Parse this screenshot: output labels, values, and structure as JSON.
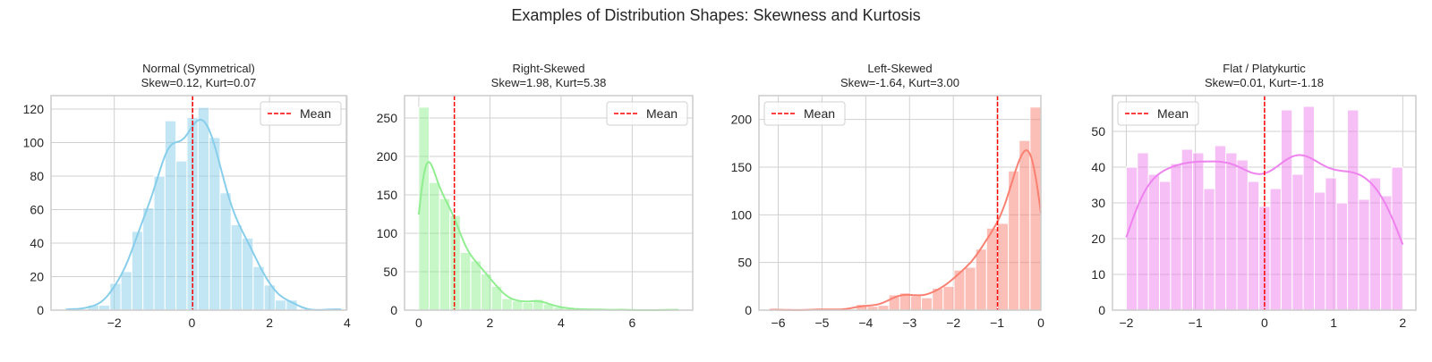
{
  "figure_title": "Examples of Distribution Shapes: Skewness and Kurtosis",
  "chart_data": [
    {
      "type": "bar",
      "title_line1": "Normal (Symmetrical)",
      "title_line2": "Skew=0.12, Kurt=0.07",
      "color": "#87ceeb",
      "bin_start": -3.25,
      "bin_width": 0.284,
      "values": [
        1,
        0,
        3,
        3,
        16,
        23,
        47,
        61,
        80,
        113,
        89,
        115,
        121,
        103,
        70,
        51,
        43,
        26,
        15,
        6,
        6,
        0,
        0,
        0,
        1
      ],
      "mean": 0.02,
      "xlim": [
        -3.63,
        3.98
      ],
      "ylim": [
        0,
        128
      ],
      "xticks": [
        -2,
        0,
        2,
        4
      ],
      "xtick_labels": [
        "−2",
        "0",
        "2",
        "4"
      ],
      "yticks": [
        0,
        20,
        40,
        60,
        80,
        100,
        120
      ],
      "ytick_labels": [
        "0",
        "20",
        "40",
        "60",
        "80",
        "100",
        "120"
      ],
      "kde": true,
      "legend": {
        "label": "Mean",
        "position": "top-right"
      },
      "grid": true
    },
    {
      "type": "bar",
      "title_line1": "Right-Skewed",
      "title_line2": "Skew=1.98, Kurt=5.38",
      "color": "#90ee90",
      "bin_start": 0.0,
      "bin_width": 0.292,
      "values": [
        264,
        166,
        145,
        123,
        75,
        64,
        47,
        31,
        15,
        12,
        10,
        14,
        8,
        4,
        2,
        1,
        1,
        1,
        0,
        1,
        0,
        0,
        0,
        0,
        1
      ],
      "mean": 1.0,
      "xlim": [
        -0.4,
        7.7
      ],
      "ylim": [
        0,
        279
      ],
      "xticks": [
        0,
        2,
        4,
        6
      ],
      "xtick_labels": [
        "0",
        "2",
        "4",
        "6"
      ],
      "yticks": [
        0,
        50,
        100,
        150,
        200,
        250
      ],
      "ytick_labels": [
        "0",
        "50",
        "100",
        "150",
        "200",
        "250"
      ],
      "kde": true,
      "legend": {
        "label": "Mean",
        "position": "top-right"
      },
      "grid": true
    },
    {
      "type": "bar",
      "title_line1": "Left-Skewed",
      "title_line2": "Skew=-1.64, Kurt=3.00",
      "color": "#fa8072",
      "bin_start": -6.2,
      "bin_width": 0.248,
      "values": [
        1,
        0,
        0,
        0,
        1,
        1,
        0,
        1,
        6,
        4,
        5,
        16,
        18,
        15,
        13,
        23,
        25,
        42,
        45,
        64,
        86,
        91,
        146,
        178,
        213
      ],
      "mean": -0.99,
      "xlim": [
        -6.44,
        0.0
      ],
      "ylim": [
        0,
        225
      ],
      "xticks": [
        -6,
        -5,
        -4,
        -3,
        -2,
        -1,
        0
      ],
      "xtick_labels": [
        "−6",
        "−5",
        "−4",
        "−3",
        "−2",
        "−1",
        "0"
      ],
      "yticks": [
        0,
        50,
        100,
        150,
        200
      ],
      "ytick_labels": [
        "0",
        "50",
        "100",
        "150",
        "200"
      ],
      "kde": true,
      "legend": {
        "label": "Mean",
        "position": "top-left"
      },
      "grid": true
    },
    {
      "type": "bar",
      "title_line1": "Flat / Platykurtic",
      "title_line2": "Skew=0.01, Kurt=-1.18",
      "color": "#ee82ee",
      "bin_start": -2.0,
      "bin_width": 0.16,
      "values": [
        40,
        44,
        38,
        36,
        41,
        45,
        44,
        34,
        46,
        44,
        42,
        36,
        29,
        34,
        56,
        38,
        57,
        33,
        37,
        30,
        56,
        31,
        37,
        32,
        40
      ],
      "mean": 0.0,
      "xlim": [
        -2.2,
        2.19
      ],
      "ylim": [
        0,
        60
      ],
      "xticks": [
        -2,
        -1,
        0,
        1,
        2
      ],
      "xtick_labels": [
        "−2",
        "−1",
        "0",
        "1",
        "2"
      ],
      "yticks": [
        0,
        10,
        20,
        30,
        40,
        50
      ],
      "ytick_labels": [
        "0",
        "10",
        "20",
        "30",
        "40",
        "50"
      ],
      "kde": true,
      "legend": {
        "label": "Mean",
        "position": "top-left"
      },
      "grid": true
    }
  ],
  "mean_line_color": "#ff0000"
}
